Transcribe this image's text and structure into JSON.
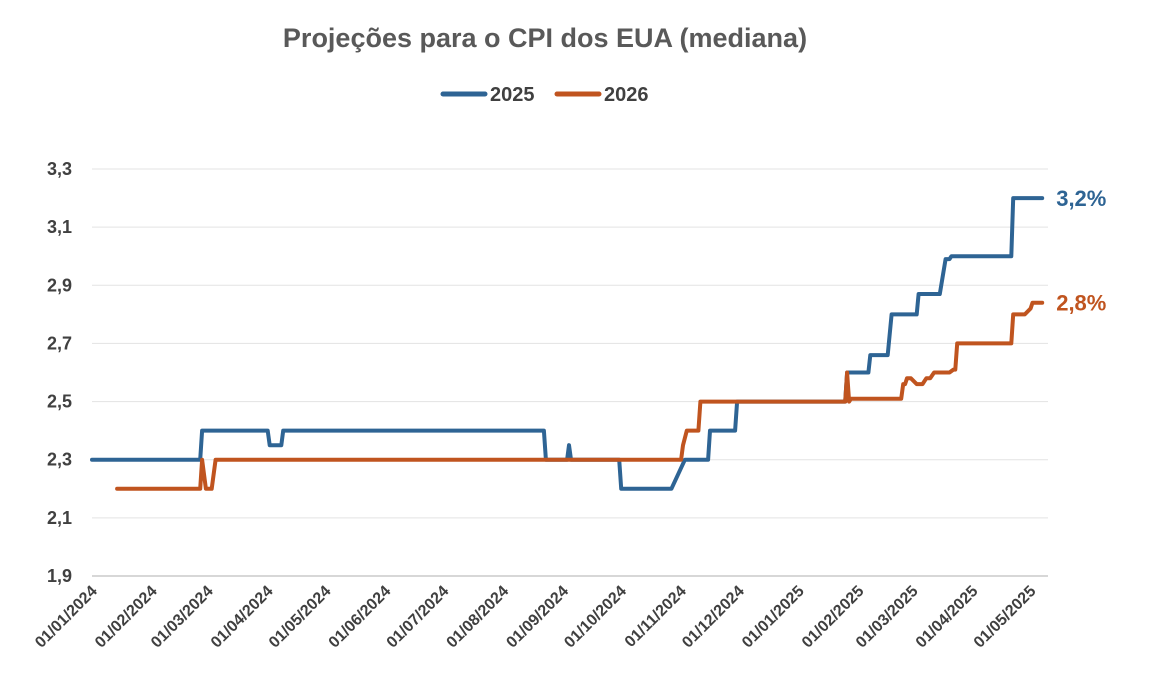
{
  "chart_data": {
    "type": "line",
    "title": "Projeções para o CPI dos EUA (mediana)",
    "xlabel": "",
    "ylabel": "",
    "ylim": [
      1.9,
      3.3
    ],
    "yticks": [
      "1,9",
      "2,1",
      "2,3",
      "2,5",
      "2,7",
      "2,9",
      "3,1",
      "3,3"
    ],
    "xlim": [
      "2024-01-01",
      "2025-05-10"
    ],
    "xticks": [
      "01/01/2024",
      "01/02/2024",
      "01/03/2024",
      "01/04/2024",
      "01/05/2024",
      "01/06/2024",
      "01/07/2024",
      "01/08/2024",
      "01/09/2024",
      "01/10/2024",
      "01/11/2024",
      "01/12/2024",
      "01/01/2025",
      "01/02/2025",
      "01/03/2025",
      "01/04/2025",
      "01/05/2025"
    ],
    "grid": true,
    "legend": "top-center",
    "series": [
      {
        "name": "2025",
        "color": "#2E6494",
        "end_label": "3,2%",
        "points": [
          [
            "2024-01-01",
            2.3
          ],
          [
            "2024-02-26",
            2.3
          ],
          [
            "2024-02-27",
            2.4
          ],
          [
            "2024-04-01",
            2.4
          ],
          [
            "2024-04-02",
            2.35
          ],
          [
            "2024-04-08",
            2.35
          ],
          [
            "2024-04-09",
            2.4
          ],
          [
            "2024-08-22",
            2.4
          ],
          [
            "2024-08-23",
            2.3
          ],
          [
            "2024-09-03",
            2.3
          ],
          [
            "2024-09-04",
            2.35
          ],
          [
            "2024-09-05",
            2.3
          ],
          [
            "2024-09-30",
            2.3
          ],
          [
            "2024-10-01",
            2.2
          ],
          [
            "2024-10-27",
            2.2
          ],
          [
            "2024-11-03",
            2.3
          ],
          [
            "2024-11-15",
            2.3
          ],
          [
            "2024-11-16",
            2.4
          ],
          [
            "2024-11-29",
            2.4
          ],
          [
            "2024-11-30",
            2.5
          ],
          [
            "2025-01-25",
            2.5
          ],
          [
            "2025-01-26",
            2.6
          ],
          [
            "2025-02-06",
            2.6
          ],
          [
            "2025-02-07",
            2.66
          ],
          [
            "2025-02-16",
            2.66
          ],
          [
            "2025-02-18",
            2.8
          ],
          [
            "2025-03-03",
            2.8
          ],
          [
            "2025-03-04",
            2.87
          ],
          [
            "2025-03-15",
            2.87
          ],
          [
            "2025-03-18",
            2.99
          ],
          [
            "2025-03-20",
            2.99
          ],
          [
            "2025-03-21",
            3.0
          ],
          [
            "2025-04-21",
            3.0
          ],
          [
            "2025-04-22",
            3.2
          ],
          [
            "2025-05-07",
            3.2
          ]
        ]
      },
      {
        "name": "2026",
        "color": "#C0541F",
        "end_label": "2,8%",
        "points": [
          [
            "2024-01-14",
            2.2
          ],
          [
            "2024-02-26",
            2.2
          ],
          [
            "2024-02-27",
            2.3
          ],
          [
            "2024-02-29",
            2.2
          ],
          [
            "2024-03-03",
            2.2
          ],
          [
            "2024-03-05",
            2.3
          ],
          [
            "2024-11-01",
            2.3
          ],
          [
            "2024-11-02",
            2.35
          ],
          [
            "2024-11-04",
            2.4
          ],
          [
            "2024-11-10",
            2.4
          ],
          [
            "2024-11-11",
            2.5
          ],
          [
            "2025-01-25",
            2.5
          ],
          [
            "2025-01-26",
            2.6
          ],
          [
            "2025-01-27",
            2.5
          ],
          [
            "2025-01-28",
            2.51
          ],
          [
            "2025-02-23",
            2.51
          ],
          [
            "2025-02-24",
            2.56
          ],
          [
            "2025-02-25",
            2.56
          ],
          [
            "2025-02-26",
            2.58
          ],
          [
            "2025-02-28",
            2.58
          ],
          [
            "2025-03-03",
            2.56
          ],
          [
            "2025-03-06",
            2.56
          ],
          [
            "2025-03-08",
            2.58
          ],
          [
            "2025-03-10",
            2.58
          ],
          [
            "2025-03-12",
            2.6
          ],
          [
            "2025-03-20",
            2.6
          ],
          [
            "2025-03-22",
            2.61
          ],
          [
            "2025-03-23",
            2.61
          ],
          [
            "2025-03-24",
            2.7
          ],
          [
            "2025-04-21",
            2.7
          ],
          [
            "2025-04-22",
            2.8
          ],
          [
            "2025-04-28",
            2.8
          ],
          [
            "2025-05-01",
            2.82
          ],
          [
            "2025-05-02",
            2.84
          ],
          [
            "2025-05-07",
            2.84
          ]
        ]
      }
    ]
  }
}
